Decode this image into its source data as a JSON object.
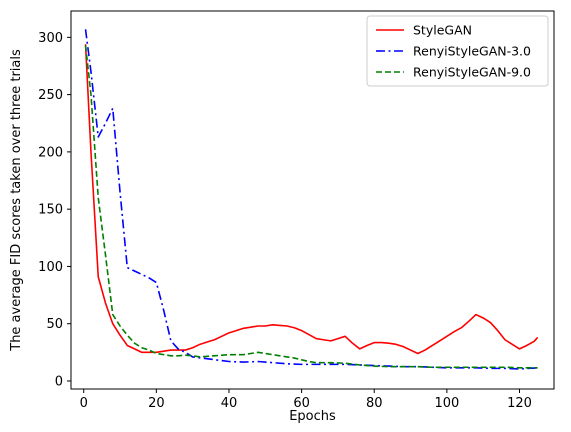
{
  "chart_data": {
    "type": "line",
    "title": "",
    "xlabel": "Epochs",
    "ylabel": "The average FID scores taken over three trials",
    "xlim": [
      -3.5,
      129.5
    ],
    "ylim": [
      -7,
      323
    ],
    "xticks": [
      0,
      20,
      40,
      60,
      80,
      100,
      120
    ],
    "yticks": [
      0,
      50,
      100,
      150,
      200,
      250,
      300
    ],
    "grid": false,
    "legend_position": "upper-right",
    "series": [
      {
        "name": "StyleGAN",
        "color": "#ff0000",
        "dash": "solid",
        "x": [
          0.5,
          2,
          4,
          6,
          8,
          10,
          12,
          14,
          16,
          18,
          20,
          22,
          24,
          26,
          28,
          30,
          32,
          34,
          36,
          38,
          40,
          42,
          44,
          46,
          48,
          50,
          52,
          54,
          56,
          58,
          60,
          62,
          64,
          66,
          68,
          70,
          72,
          74,
          76,
          78,
          80,
          82,
          84,
          86,
          88,
          90,
          92,
          94,
          96,
          98,
          100,
          102,
          104,
          106,
          108,
          110,
          112,
          114,
          116,
          118,
          120,
          122,
          124,
          125
        ],
        "y": [
          294,
          200,
          91,
          68,
          50,
          40,
          31,
          28,
          25,
          25,
          25,
          26,
          27,
          27,
          27,
          29,
          32,
          34,
          36,
          39,
          42,
          44,
          46,
          47,
          48,
          48,
          49,
          48.5,
          48,
          46.5,
          44,
          40.5,
          37,
          36,
          35,
          37,
          39,
          33,
          28,
          31,
          33.5,
          33.5,
          33,
          32,
          30,
          27,
          24,
          27,
          31,
          35,
          39,
          43,
          46.5,
          52,
          58,
          55,
          51,
          44,
          36,
          32,
          28,
          31,
          34.5,
          38
        ]
      },
      {
        "name": "RenyiStyleGAN-3.0",
        "color": "#0000ff",
        "dash": "dashdot",
        "x": [
          0.5,
          2,
          4,
          6,
          8,
          10,
          12,
          14,
          16,
          18,
          20,
          22,
          24,
          26,
          28,
          30,
          35,
          40,
          44,
          48,
          52,
          56,
          60,
          64,
          68,
          72,
          76,
          80,
          84,
          88,
          92,
          96,
          100,
          104,
          108,
          112,
          116,
          120,
          125
        ],
        "y": [
          307,
          270,
          213,
          225,
          238,
          165,
          99,
          96,
          93,
          90,
          86,
          62,
          35,
          28,
          25,
          21,
          19,
          17,
          16.5,
          17,
          16,
          15,
          14.5,
          14.5,
          14.5,
          14.5,
          14,
          13.5,
          13,
          12.5,
          12.5,
          12,
          11.5,
          11.5,
          11.5,
          11,
          11,
          10.5,
          11.5
        ]
      },
      {
        "name": "RenyiStyleGAN-9.0",
        "color": "#008000",
        "dash": "dashed",
        "x": [
          0.5,
          2,
          4,
          6,
          8,
          10,
          12,
          14,
          16,
          18,
          20,
          22,
          24,
          26,
          28,
          30,
          32,
          34,
          36,
          38,
          40,
          42,
          44,
          46,
          48,
          50,
          52,
          54,
          56,
          58,
          60,
          62,
          64,
          68,
          72,
          76,
          80,
          84,
          88,
          92,
          96,
          100,
          104,
          108,
          112,
          116,
          120,
          125
        ],
        "y": [
          293,
          250,
          160,
          110,
          58,
          48,
          40,
          33,
          29,
          27,
          24,
          23,
          22,
          22,
          22.5,
          22,
          21,
          21.5,
          22,
          22.5,
          23,
          23,
          23,
          24,
          25,
          24,
          23,
          22,
          21,
          20,
          18.5,
          17,
          16,
          16,
          15.5,
          14,
          13,
          12.5,
          12.5,
          12.5,
          12,
          12,
          12,
          12,
          12,
          12,
          11.5,
          11.5
        ]
      }
    ]
  }
}
